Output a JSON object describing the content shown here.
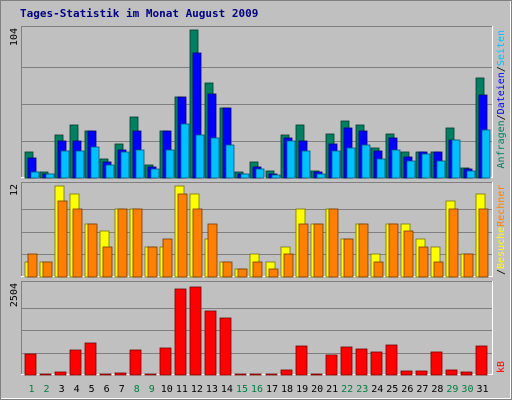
{
  "chart_data": {
    "type": "bar",
    "title": "Tages-Statistik im Monat August 2009",
    "categories": [
      "1",
      "2",
      "3",
      "4",
      "5",
      "6",
      "7",
      "8",
      "9",
      "10",
      "11",
      "12",
      "13",
      "14",
      "15",
      "16",
      "17",
      "18",
      "19",
      "20",
      "21",
      "22",
      "23",
      "24",
      "25",
      "26",
      "27",
      "28",
      "29",
      "30",
      "31"
    ],
    "weekend_days": [
      "1",
      "2",
      "8",
      "9",
      "15",
      "16",
      "22",
      "23",
      "29",
      "30"
    ],
    "colors": {
      "background": "#c0c0c0",
      "title": "#000080",
      "weekday_label": "#000000",
      "weekend_label": "#008040",
      "anfragen": "#008060",
      "dateien": "#0000ff",
      "seiten": "#00c0ff",
      "besuche": "#ffff00",
      "rechner": "#ff8000",
      "kb": "#ff0000"
    },
    "panels": [
      {
        "id": "hits",
        "ymax_label": "104",
        "ymax": 104,
        "series": [
          {
            "name": "Anfragen",
            "color": "#008060",
            "values": [
              18,
              4,
              30,
              37,
              33,
              13,
              24,
              43,
              9,
              33,
              57,
              104,
              67,
              49,
              4,
              11,
              5,
              30,
              37,
              5,
              31,
              40,
              37,
              21,
              31,
              18,
              18,
              18,
              35,
              7,
              70
            ]
          },
          {
            "name": "Dateien",
            "color": "#0000ff",
            "values": [
              14,
              3,
              26,
              26,
              33,
              11,
              20,
              33,
              8,
              33,
              57,
              88,
              59,
              49,
              3,
              8,
              3,
              28,
              26,
              4,
              24,
              35,
              33,
              19,
              28,
              15,
              18,
              18,
              27,
              6,
              58
            ]
          },
          {
            "name": "Seiten",
            "color": "#00c0ff",
            "values": [
              4,
              3,
              19,
              19,
              22,
              9,
              18,
              20,
              6,
              20,
              38,
              30,
              28,
              23,
              3,
              6,
              2,
              26,
              19,
              3,
              19,
              21,
              23,
              13,
              20,
              12,
              17,
              12,
              27,
              5,
              34
            ]
          }
        ],
        "axis_right_parts": [
          "Anfragen",
          "/",
          "Dateien",
          "/",
          "Seiten"
        ]
      },
      {
        "id": "visits",
        "ymax_label": "12",
        "ymax": 12,
        "series": [
          {
            "name": "Besuche",
            "color": "#ffff00",
            "values": [
              2,
              2,
              12,
              11,
              7,
              6,
              9,
              9,
              4,
              4,
              12,
              11,
              5,
              2,
              1,
              3,
              2,
              4,
              9,
              7,
              9,
              5,
              7,
              3,
              7,
              7,
              5,
              4,
              10,
              3,
              11
            ]
          },
          {
            "name": "Rechner",
            "color": "#ff8000",
            "values": [
              3,
              2,
              10,
              9,
              7,
              4,
              9,
              9,
              4,
              5,
              11,
              9,
              7,
              2,
              1,
              2,
              1,
              3,
              7,
              7,
              9,
              5,
              7,
              2,
              7,
              6,
              4,
              2,
              9,
              3,
              9
            ]
          }
        ],
        "axis_right_parts": [
          "/",
          "Besuche",
          "Rechner"
        ]
      },
      {
        "id": "kb",
        "ymax_label": "2504",
        "ymax": 2504,
        "series": [
          {
            "name": "kB",
            "color": "#ff0000",
            "values": [
              580,
              10,
              90,
              700,
              900,
              10,
              60,
              700,
              10,
              750,
              2380,
              2440,
              1780,
              1590,
              10,
              10,
              20,
              130,
              810,
              10,
              550,
              790,
              730,
              650,
              840,
              110,
              110,
              650,
              150,
              90,
              810
            ]
          }
        ],
        "axis_right_parts": [
          "kB"
        ]
      }
    ]
  }
}
